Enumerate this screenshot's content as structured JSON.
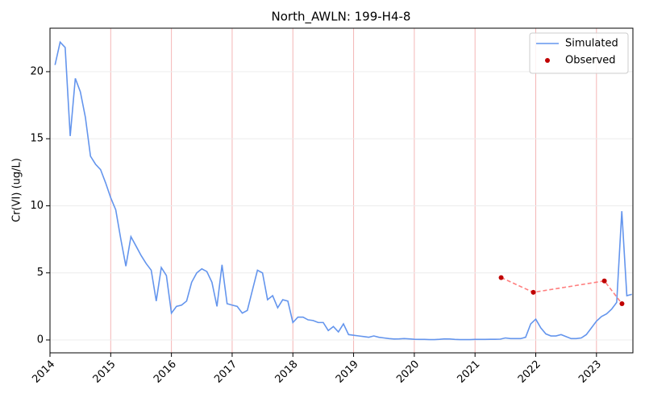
{
  "chart_data": {
    "type": "line",
    "title": "North_AWLN: 199-H4-8",
    "ylabel": "Cr(VI) (ug/L)",
    "xlim": [
      2014,
      2023.6
    ],
    "xticks": [
      2014,
      2015,
      2016,
      2017,
      2018,
      2019,
      2020,
      2021,
      2022,
      2023
    ],
    "ylim": [
      -0.96,
      23.24
    ],
    "yticks": [
      0,
      5,
      10,
      15,
      20
    ],
    "grid": true,
    "legend": "upper right",
    "series": [
      {
        "name": "Simulated",
        "style": "line",
        "color": "#6495ed",
        "x": [
          2014.083,
          2014.167,
          2014.25,
          2014.333,
          2014.417,
          2014.5,
          2014.583,
          2014.667,
          2014.75,
          2014.833,
          2014.917,
          2015,
          2015.083,
          2015.167,
          2015.25,
          2015.333,
          2015.417,
          2015.5,
          2015.583,
          2015.667,
          2015.75,
          2015.833,
          2015.917,
          2016,
          2016.083,
          2016.167,
          2016.25,
          2016.333,
          2016.417,
          2016.5,
          2016.583,
          2016.667,
          2016.75,
          2016.833,
          2016.917,
          2017,
          2017.083,
          2017.167,
          2017.25,
          2017.333,
          2017.417,
          2017.5,
          2017.583,
          2017.667,
          2017.75,
          2017.833,
          2017.917,
          2018,
          2018.083,
          2018.167,
          2018.25,
          2018.333,
          2018.417,
          2018.5,
          2018.583,
          2018.667,
          2018.75,
          2018.833,
          2018.917,
          2019,
          2019.083,
          2019.167,
          2019.25,
          2019.333,
          2019.417,
          2019.5,
          2019.583,
          2019.667,
          2019.75,
          2019.833,
          2019.917,
          2020,
          2020.083,
          2020.167,
          2020.25,
          2020.333,
          2020.417,
          2020.5,
          2020.583,
          2020.667,
          2020.75,
          2020.833,
          2020.917,
          2021,
          2021.083,
          2021.167,
          2021.25,
          2021.333,
          2021.417,
          2021.5,
          2021.583,
          2021.667,
          2021.75,
          2021.833,
          2021.917,
          2022,
          2022.083,
          2022.167,
          2022.25,
          2022.333,
          2022.417,
          2022.5,
          2022.583,
          2022.667,
          2022.75,
          2022.833,
          2022.917,
          2023,
          2023.083,
          2023.167,
          2023.25,
          2023.333,
          2023.417,
          2023.5,
          2023.583
        ],
        "values": [
          20.5,
          22.2,
          21.8,
          15.2,
          19.5,
          18.5,
          16.6,
          13.7,
          13.1,
          12.7,
          11.7,
          10.6,
          9.7,
          7.5,
          5.5,
          7.7,
          7.0,
          6.3,
          5.7,
          5.2,
          2.9,
          5.4,
          4.8,
          2.0,
          2.5,
          2.6,
          2.9,
          4.3,
          5.0,
          5.3,
          5.1,
          4.3,
          2.5,
          5.6,
          2.7,
          2.6,
          2.5,
          2.0,
          2.2,
          3.7,
          5.2,
          5.0,
          3.0,
          3.3,
          2.4,
          3.0,
          2.9,
          1.3,
          1.7,
          1.7,
          1.5,
          1.45,
          1.3,
          1.3,
          0.7,
          1.0,
          0.6,
          1.2,
          0.4,
          0.35,
          0.3,
          0.25,
          0.2,
          0.3,
          0.2,
          0.15,
          0.1,
          0.07,
          0.08,
          0.1,
          0.08,
          0.05,
          0.04,
          0.04,
          0.03,
          0.03,
          0.05,
          0.08,
          0.07,
          0.04,
          0.03,
          0.03,
          0.03,
          0.04,
          0.04,
          0.04,
          0.05,
          0.05,
          0.06,
          0.15,
          0.1,
          0.1,
          0.1,
          0.2,
          1.2,
          1.55,
          0.9,
          0.45,
          0.3,
          0.3,
          0.4,
          0.25,
          0.1,
          0.1,
          0.15,
          0.4,
          0.9,
          1.4,
          1.75,
          1.95,
          2.3,
          2.8,
          9.6,
          3.3,
          3.4
        ]
      },
      {
        "name": "Observed",
        "style": "scatter",
        "color": "#c00000",
        "connect_color": "#ff7f7f",
        "x": [
          2021.43,
          2021.96,
          2023.13,
          2023.42
        ],
        "values": [
          4.65,
          3.55,
          4.4,
          2.7
        ]
      }
    ]
  }
}
